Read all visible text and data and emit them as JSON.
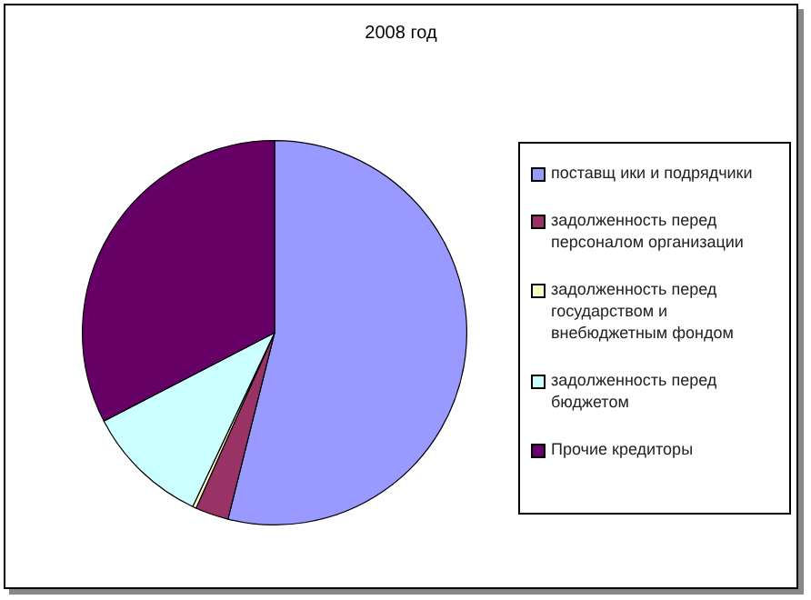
{
  "chart_data": {
    "type": "pie",
    "title": "2008 год",
    "categories": [
      "поставщ ики и подрядчики",
      "задолженность перед персоналом организации",
      "задолженность перед государством и внебюджетным фондом",
      "задолженность перед бюджетом",
      "Прочие кредиторы"
    ],
    "values": [
      53.9,
      2.8,
      0.3,
      10.4,
      32.6
    ],
    "colors": [
      "#9999ff",
      "#993366",
      "#ffffcc",
      "#ccffff",
      "#660066"
    ],
    "legend": "right"
  }
}
